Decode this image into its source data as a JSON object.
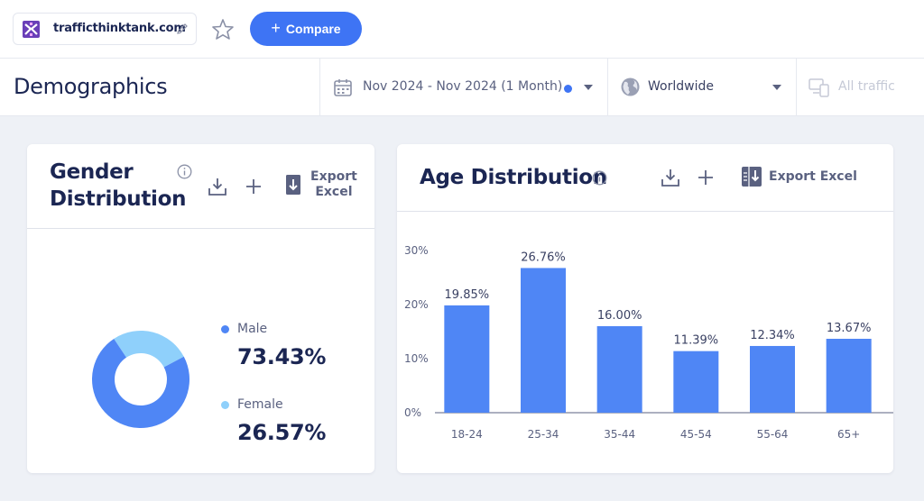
{
  "site": {
    "domain": "trafficthinktank.com"
  },
  "toolbar": {
    "compare_label": "Compare"
  },
  "header": {
    "title": "Demographics",
    "date_range": "Nov 2024 - Nov 2024 (1 Month)",
    "country": "Worldwide",
    "traffic": "All traffic"
  },
  "gender": {
    "title_line1": "Gender",
    "title_line2": "Distribution",
    "export_line1": "Export",
    "export_line2": "Excel",
    "male_label": "Male",
    "male_value": "73.43%",
    "female_label": "Female",
    "female_value": "26.57%",
    "male_pct": 73.43,
    "female_pct": 26.57,
    "male_color": "#4f86f5",
    "female_color": "#8fd0fb"
  },
  "age": {
    "title": "Age Distribution",
    "export_label": "Export Excel"
  },
  "colors": {
    "accent": "#3e74f4",
    "bar": "#4f86f5"
  },
  "chart_data": {
    "type": "bar",
    "title": "Age Distribution",
    "categories": [
      "18-24",
      "25-34",
      "35-44",
      "45-54",
      "55-64",
      "65+"
    ],
    "values": [
      19.85,
      26.76,
      16.0,
      11.39,
      12.34,
      13.67
    ],
    "value_labels": [
      "19.85%",
      "26.76%",
      "16.00%",
      "11.39%",
      "12.34%",
      "13.67%"
    ],
    "y_ticks": [
      "0%",
      "10%",
      "20%",
      "30%"
    ],
    "y_tick_values": [
      0,
      10,
      20,
      30
    ],
    "ylim": [
      0,
      30
    ],
    "xlabel": "",
    "ylabel": ""
  }
}
